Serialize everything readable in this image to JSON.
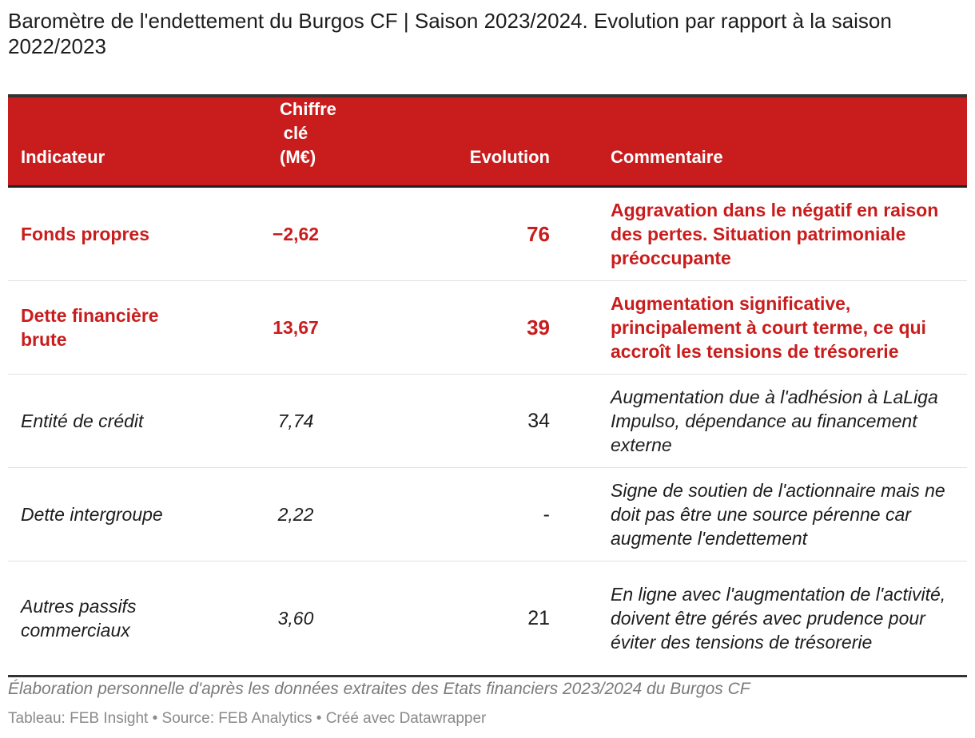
{
  "title": "Baromètre de l'endettement du Burgos CF | Saison 2023/2024. Evolution par rapport à la saison 2022/2023",
  "colors": {
    "header_bg": "#c91d1d",
    "emphasis_text": "#c91d1d"
  },
  "chart_data": {
    "type": "table",
    "columns": [
      "Indicateur",
      "Chiffre clé (M€)",
      "Evolution",
      "Commentaire"
    ],
    "rows": [
      {
        "indicateur": "Fonds propres",
        "chiffre": "−2,62",
        "evolution": "76",
        "commentaire": "Aggravation dans le négatif en raison des pertes. Situation patrimoniale préoccupante",
        "style": "emph"
      },
      {
        "indicateur": "Dette financière brute",
        "chiffre": "13,67",
        "evolution": "39",
        "commentaire": "Augmentation significative, principalement à court terme, ce qui accroît les tensions de trésorerie",
        "style": "emph"
      },
      {
        "indicateur": "Entité de crédit",
        "chiffre": "7,74",
        "evolution": "34",
        "commentaire": "Augmentation due à l'adhésion à LaLiga Impulso, dépendance au financement externe",
        "style": "plain"
      },
      {
        "indicateur": "Dette intergroupe",
        "chiffre": "2,22",
        "evolution": "-",
        "commentaire": "Signe de soutien de l'actionnaire mais ne doit pas être une source pérenne car augmente l'endettement",
        "style": "plain"
      },
      {
        "indicateur": "Autres passifs commerciaux",
        "chiffre": "3,60",
        "evolution": "21",
        "commentaire": "En ligne avec l'augmentation de l'activité, doivent être gérés avec prudence pour éviter des tensions de trésorerie",
        "style": "plain"
      }
    ]
  },
  "note": "Élaboration personnelle d'après les données extraites des Etats financiers 2023/2024 du Burgos CF",
  "credits": "Tableau: FEB Insight • Source: FEB Analytics • Créé avec Datawrapper"
}
